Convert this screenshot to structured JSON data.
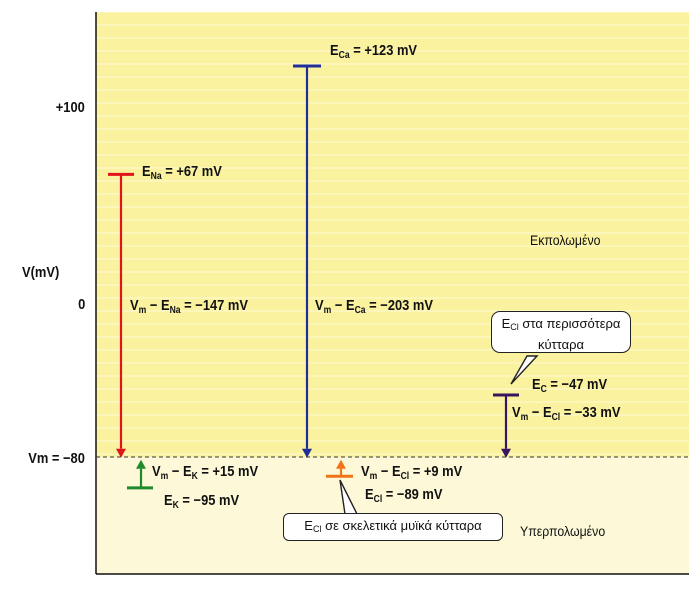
{
  "axis": {
    "y_label": "V(mV)",
    "ticks": [
      {
        "label": "+100",
        "value": 100
      },
      {
        "label": "0",
        "value": 0
      },
      {
        "label": "Vm = −80",
        "value": -80
      }
    ],
    "membrane_potential": -80
  },
  "regions": {
    "depolarized": "Εκπολωμένο",
    "hyperpolarized": "Υπερπολωμένο"
  },
  "colors": {
    "background_upper": "#fbf2a0",
    "background_lower": "#fdf9d8",
    "na": "#e0141b",
    "ca": "#1d2f96",
    "k": "#1e8a2b",
    "cl_muscle": "#f07418",
    "cl_general": "#3b1460"
  },
  "ions": [
    {
      "id": "na",
      "equilibrium_label": {
        "pre": "E",
        "sub": "Na",
        "post": " = +67 mV"
      },
      "equilibrium_value": 67,
      "driving_label": {
        "pre": "V",
        "sub1": "m",
        "mid": " − E",
        "sub2": "Na",
        "post": " = −147 mV"
      },
      "driving_value": -147
    },
    {
      "id": "ca",
      "equilibrium_label": {
        "pre": "E",
        "sub": "Ca",
        "post": " = +123 mV"
      },
      "equilibrium_value": 123,
      "driving_label": {
        "pre": "V",
        "sub1": "m",
        "mid": " − E",
        "sub2": "Ca",
        "post": " = −203 mV"
      },
      "driving_value": -203
    },
    {
      "id": "k",
      "equilibrium_label": {
        "pre": "E",
        "sub": "K",
        "post": " = −95 mV"
      },
      "equilibrium_value": -95,
      "driving_label": {
        "pre": "V",
        "sub1": "m",
        "mid": " − E",
        "sub2": "K",
        "post": " = +15 mV"
      },
      "driving_value": 15
    },
    {
      "id": "cl_muscle",
      "equilibrium_label": {
        "pre": "E",
        "sub": "Cl",
        "post": " = −89 mV"
      },
      "equilibrium_value": -89,
      "driving_label": {
        "pre": "V",
        "sub1": "m",
        "mid": " − E",
        "sub2": "Cl",
        "post": " = +9 mV"
      },
      "driving_value": 9
    },
    {
      "id": "cl_general",
      "equilibrium_label": {
        "pre": "E",
        "sub": "C",
        "post": " = −47 mV"
      },
      "equilibrium_value": -47,
      "driving_label": {
        "pre": "V",
        "sub1": "m",
        "mid": " − E",
        "sub2": "Cl",
        "post": " = −33 mV"
      },
      "driving_value": -33
    }
  ],
  "callouts": {
    "cl_general": {
      "pre": "E",
      "sub": "Cl",
      "line1": " στα περισσότερα",
      "line2": "κύτταρα"
    },
    "cl_muscle": {
      "pre": "E",
      "sub": "Cl",
      "text": " σε σκελετικά μυϊκά κύτταρα"
    }
  }
}
